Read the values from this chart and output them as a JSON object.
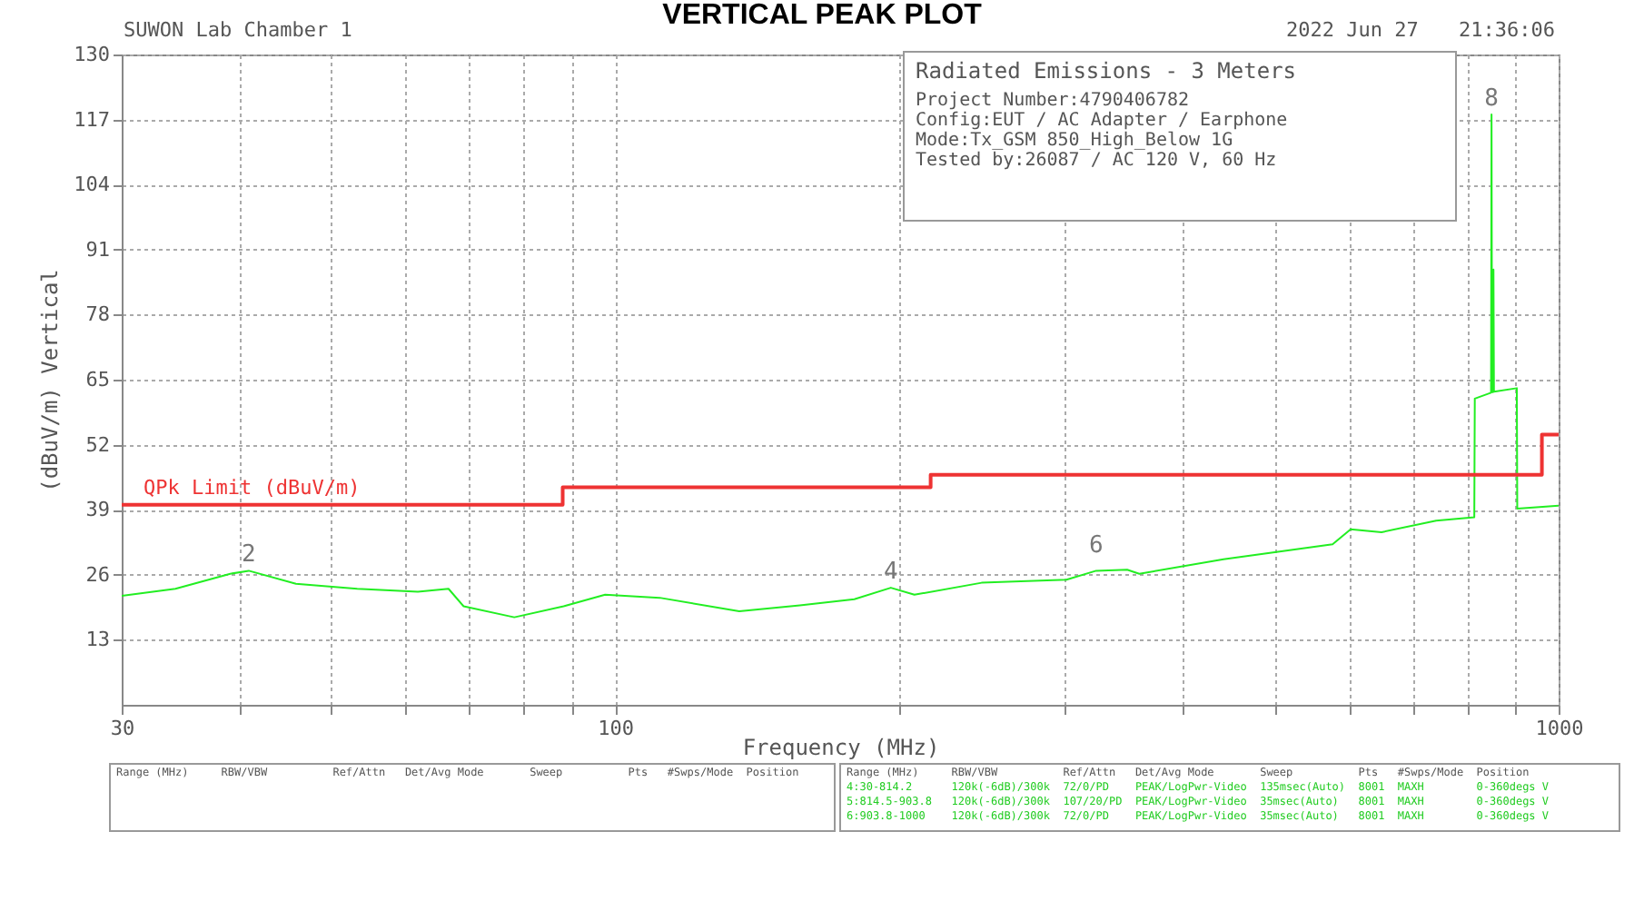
{
  "chart_data": {
    "type": "line",
    "title": "VERTICAL PEAK PLOT",
    "xlabel": "Frequency (MHz)",
    "ylabel": "(dBuV/m) Vertical",
    "log": "x",
    "grid": true,
    "legend": false,
    "marker": "none",
    "line_style": "solid",
    "xlim": [
      30,
      1000
    ],
    "xticks": [
      30,
      {
        "value": 40,
        "label": null
      },
      {
        "value": 50,
        "label": null
      },
      {
        "value": 60,
        "label": null
      },
      {
        "value": 70,
        "label": null
      },
      {
        "value": 80,
        "label": null
      },
      {
        "value": 90,
        "label": null
      },
      100,
      {
        "value": 200,
        "label": null
      },
      {
        "value": 300,
        "label": null
      },
      {
        "value": 400,
        "label": null
      },
      {
        "value": 500,
        "label": null
      },
      {
        "value": 600,
        "label": null
      },
      {
        "value": 700,
        "label": null
      },
      {
        "value": 800,
        "label": null
      },
      {
        "value": 900,
        "label": null
      },
      1000
    ],
    "ylim": [
      0,
      130
    ],
    "yticks": [
      13,
      26,
      39,
      52,
      65,
      78,
      91,
      104,
      117,
      130
    ],
    "series": [
      {
        "type": "line",
        "color": "#22ee22",
        "x": [
          30,
          34.2,
          39.1,
          40.9,
          45.9,
          53.3,
          61.8,
          66.6,
          69.1,
          78.2,
          88.2,
          97.6,
          111.5,
          135.4,
          157,
          179.3,
          196,
          207.6,
          244.6,
          300.9,
          323.5,
          348.9,
          359.4,
          441.4,
          576,
          602,
          649,
          741.7,
          814,
          815,
          848,
          849,
          850,
          852,
          853,
          854,
          903,
          904,
          1000
        ],
        "values": [
          21.8,
          23.2,
          26.2,
          26.8,
          24.2,
          23.2,
          22.6,
          23.2,
          19.7,
          17.5,
          19.7,
          22,
          21.4,
          18.7,
          19.9,
          21.1,
          23.4,
          22,
          24.4,
          25,
          26.8,
          27,
          26.2,
          29.1,
          32.1,
          35.1,
          34.5,
          36.8,
          37.5,
          61.2,
          62.4,
          118,
          62.5,
          62.5,
          87,
          62.6,
          63.3,
          39.2,
          39.8
        ]
      },
      {
        "type": "step",
        "name": "QPk Limit (dBuV/m)",
        "color": "#ee3333",
        "x": [
          30,
          88,
          216,
          960,
          1000
        ],
        "values": [
          40,
          43.5,
          46,
          54,
          54
        ]
      }
    ],
    "annotations": [
      "SUWON Lab Chamber 1",
      "2022 Jun 27",
      "21:36:06",
      "Radiated Emissions - 3 Meters",
      "Project Number:4790406782",
      "Config:EUT / AC Adapter / Earphone",
      "Mode:Tx_GSM 850_High_Below 1G",
      "Tested by:26087 / AC 120 V, 60 Hz",
      "Range (MHz)     RBW/VBW          Ref/Attn   Det/Avg Mode       Sweep          Pts   #Swps/Mode  Position",
      "Range (MHz)     RBW/VBW          Ref/Attn   Det/Avg Mode       Sweep          Pts   #Swps/Mode  Position",
      "4:30-814.2      120k(-6dB)/300k  72/0/PD    PEAK/LogPwr-Video  135msec(Auto)  8001  MAXH        0-360degs V",
      "5:814.5-903.8   120k(-6dB)/300k  107/20/PD  PEAK/LogPwr-Video  35msec(Auto)   8001  MAXH        0-360degs V",
      "6:903.8-1000    120k(-6dB)/300k  72/0/PD    PEAK/LogPwr-Video  35msec(Auto)   8001  MAXH        0-360degs V",
      {
        "text": "2",
        "x": 40.9,
        "y": 26.8
      },
      {
        "text": "4",
        "x": 196,
        "y": 23.4
      },
      {
        "text": "6",
        "x": 323.5,
        "y": 28.6
      },
      {
        "text": "8",
        "x": 849,
        "y": 118
      }
    ]
  }
}
